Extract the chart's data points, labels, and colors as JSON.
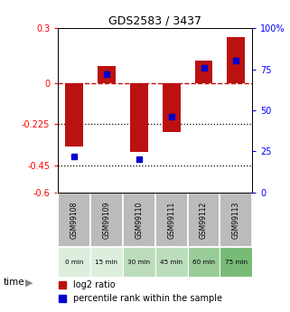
{
  "title": "GDS2583 / 3437",
  "samples": [
    "GSM99108",
    "GSM99109",
    "GSM99110",
    "GSM99111",
    "GSM99112",
    "GSM99113"
  ],
  "time_labels": [
    "0 min",
    "15 min",
    "30 min",
    "45 min",
    "60 min",
    "75 min"
  ],
  "log2_ratio": [
    -0.35,
    0.09,
    -0.38,
    -0.27,
    0.12,
    0.25
  ],
  "percentile_rank": [
    22,
    72,
    20,
    46,
    76,
    80
  ],
  "ylim_left": [
    -0.6,
    0.3
  ],
  "ylim_right": [
    0,
    100
  ],
  "yticks_left": [
    0.3,
    0,
    -0.225,
    -0.45,
    -0.6
  ],
  "yticks_right": [
    100,
    75,
    50,
    25,
    0
  ],
  "bar_color": "#bb1111",
  "dot_color": "#0000cc",
  "sample_bg_color": "#bbbbbb",
  "time_bg_colors": [
    "#ddeedd",
    "#ddeedd",
    "#bbddbb",
    "#bbddbb",
    "#99cc99",
    "#77bb77"
  ],
  "legend_red_label": "log2 ratio",
  "legend_blue_label": "percentile rank within the sample"
}
